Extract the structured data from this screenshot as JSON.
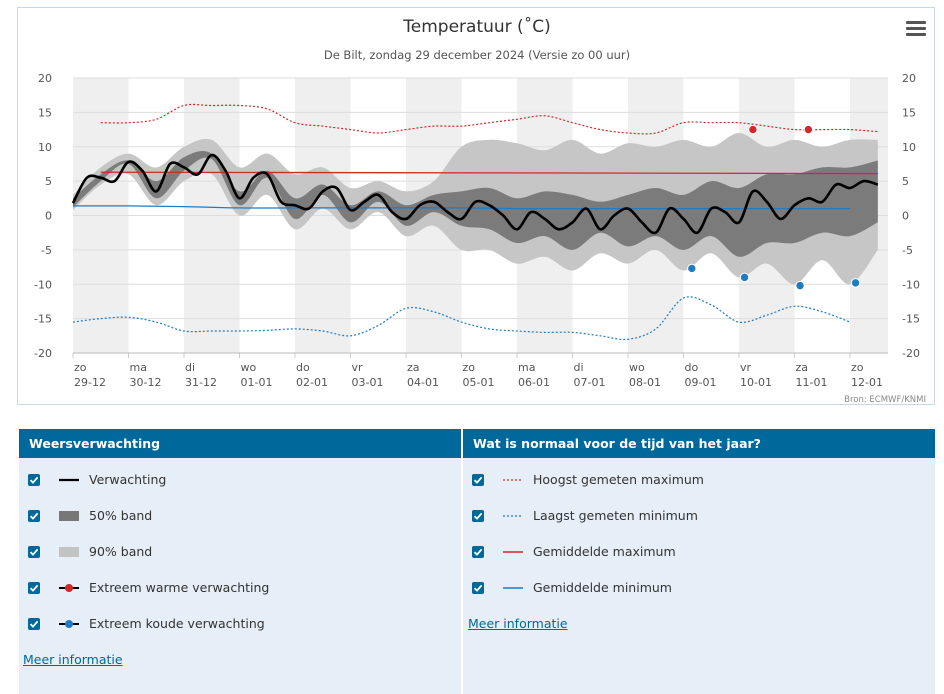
{
  "chart_data": {
    "type": "line",
    "title": "Temperatuur (˚C)",
    "subtitle": "De Bilt, zondag 29 december 2024 (Versie zo 00 uur)",
    "credit": "Bron: ECMWF/KNMI",
    "ylim": [
      -20,
      20
    ],
    "yticks": [
      20,
      15,
      10,
      5,
      0,
      -5,
      -10,
      -15,
      -20
    ],
    "xlim": [
      0,
      14.6
    ],
    "grid": true,
    "x_ticks": [
      {
        "day": "zo",
        "date": "29-12"
      },
      {
        "day": "ma",
        "date": "30-12"
      },
      {
        "day": "di",
        "date": "31-12"
      },
      {
        "day": "wo",
        "date": "01-01"
      },
      {
        "day": "do",
        "date": "02-01"
      },
      {
        "day": "vr",
        "date": "03-01"
      },
      {
        "day": "za",
        "date": "04-01"
      },
      {
        "day": "zo",
        "date": "05-01"
      },
      {
        "day": "ma",
        "date": "06-01"
      },
      {
        "day": "di",
        "date": "07-01"
      },
      {
        "day": "wo",
        "date": "08-01"
      },
      {
        "day": "do",
        "date": "09-01"
      },
      {
        "day": "vr",
        "date": "10-01"
      },
      {
        "day": "za",
        "date": "11-01"
      },
      {
        "day": "zo",
        "date": "12-01"
      }
    ],
    "series": [
      {
        "name": "Verwachting",
        "color": "#000000",
        "x": [
          0,
          0.25,
          0.5,
          0.75,
          1,
          1.25,
          1.5,
          1.75,
          2,
          2.25,
          2.5,
          2.75,
          3,
          3.25,
          3.5,
          3.75,
          4,
          4.25,
          4.5,
          4.75,
          5,
          5.25,
          5.5,
          5.75,
          6,
          6.25,
          6.5,
          6.75,
          7,
          7.25,
          7.5,
          7.75,
          8,
          8.25,
          8.5,
          8.75,
          9,
          9.25,
          9.5,
          9.75,
          10,
          10.25,
          10.5,
          10.75,
          11,
          11.25,
          11.5,
          11.75,
          12,
          12.25,
          12.5,
          12.75,
          13,
          13.25,
          13.5,
          13.75,
          14,
          14.25,
          14.5
        ],
        "y": [
          1.8,
          5.5,
          5.5,
          5,
          7.8,
          6.5,
          3.5,
          7.5,
          7,
          6,
          8.8,
          6.5,
          2.5,
          5.5,
          6,
          2,
          1.5,
          1,
          3.5,
          4,
          0.8,
          2,
          3,
          0.5,
          -0.5,
          1.5,
          2,
          0.5,
          -0.5,
          2,
          1.5,
          0,
          -2,
          0.5,
          -0.5,
          -2,
          -1,
          1,
          -2,
          0,
          1,
          -1,
          -2.5,
          1,
          -0.5,
          -2.5,
          1,
          0.5,
          -1,
          3.5,
          2,
          -0.5,
          1.5,
          2.5,
          2,
          4.5,
          4,
          5,
          4.5
        ]
      },
      {
        "name": "50% band",
        "color": "#777777",
        "x": [
          0,
          0.5,
          1,
          1.5,
          2,
          2.5,
          3,
          3.5,
          4,
          4.5,
          5,
          5.5,
          6,
          6.5,
          7,
          7.5,
          8,
          8.5,
          9,
          9.5,
          10,
          10.5,
          11,
          11.5,
          12,
          12.5,
          13,
          13.5,
          14,
          14.5
        ],
        "upper": [
          2.5,
          6,
          8,
          5,
          8.5,
          9,
          3.5,
          6.5,
          2.5,
          4.5,
          1.5,
          3.5,
          1.5,
          3,
          3.5,
          4,
          2.5,
          3.5,
          3,
          2,
          3,
          4,
          3,
          5,
          4,
          6,
          6,
          7,
          7,
          8
        ],
        "lower": [
          1.2,
          5,
          7.5,
          2.5,
          6.5,
          8.2,
          1.5,
          5.5,
          -0.5,
          3,
          -1,
          2,
          -1.5,
          0.5,
          -1.5,
          -2,
          -4,
          -3,
          -5,
          -2.5,
          -4.5,
          -3,
          -5,
          -3,
          -6,
          -4,
          -4,
          -2.5,
          -3,
          -1
        ]
      },
      {
        "name": "90% band",
        "color": "#c3c3c3",
        "x": [
          0,
          0.5,
          1,
          1.5,
          2,
          2.5,
          3,
          3.5,
          4,
          4.5,
          5,
          5.5,
          6,
          6.5,
          7,
          7.5,
          8,
          8.5,
          9,
          9.5,
          10,
          10.5,
          11,
          11.5,
          12,
          12.5,
          13,
          13.5,
          14,
          14.5
        ],
        "upper": [
          3,
          7,
          9,
          7,
          10,
          11,
          7,
          9,
          6,
          7,
          4,
          5,
          3.5,
          5,
          10,
          11,
          10.5,
          9.5,
          11,
          9,
          10.5,
          10,
          11,
          10,
          12,
          10,
          11,
          10,
          11,
          11
        ],
        "lower": [
          0.8,
          4.5,
          6,
          1.5,
          5,
          6,
          0,
          3,
          -2,
          1,
          -2,
          0.5,
          -3,
          -1.5,
          -5,
          -5,
          -7,
          -6,
          -8,
          -5.5,
          -7,
          -5,
          -8,
          -5.5,
          -9,
          -7,
          -10,
          -6.5,
          -10,
          -5
        ]
      },
      {
        "name": "Extreem warme verwachting",
        "color": "#d62728",
        "x": [
          12.25,
          13.25
        ],
        "y": [
          12.5,
          12.5
        ]
      },
      {
        "name": "Extreem koude verwachting",
        "color": "#1f7bc4",
        "x": [
          11.15,
          12.1,
          13.1,
          14.1
        ],
        "y": [
          -7.7,
          -9,
          -10.2,
          -9.8
        ]
      },
      {
        "name": "Hoogst gemeten maximum",
        "color": "#d62728",
        "x": [
          0.5,
          1,
          1.5,
          2,
          2.5,
          3,
          3.5,
          4,
          4.5,
          5,
          5.5,
          6,
          6.5,
          7,
          7.5,
          8,
          8.5,
          9,
          9.5,
          10,
          10.5,
          11,
          11.5,
          12,
          12.5,
          13,
          13.5,
          14,
          14.5
        ],
        "y": [
          13.5,
          13.5,
          14,
          16,
          16,
          16,
          15.5,
          13.5,
          13,
          12.5,
          12,
          12.5,
          13,
          13,
          13.5,
          14,
          14.5,
          13.5,
          12.5,
          12,
          12,
          13.5,
          13.5,
          13.5,
          13,
          12.5,
          12.5,
          12.5,
          12.2
        ]
      },
      {
        "name": "Laagst gemeten minimum",
        "color": "#1f7bc4",
        "x": [
          0,
          0.5,
          1,
          1.5,
          2,
          2.5,
          3,
          3.5,
          4,
          4.5,
          5,
          5.5,
          6,
          6.5,
          7,
          7.5,
          8,
          8.5,
          9,
          9.5,
          10,
          10.5,
          11,
          11.5,
          12,
          12.5,
          13,
          13.5,
          14
        ],
        "y": [
          -15.5,
          -15,
          -14.8,
          -15.5,
          -16.8,
          -16.8,
          -16.8,
          -16.7,
          -16.5,
          -16.8,
          -17.5,
          -16,
          -13.5,
          -14,
          -15.5,
          -16.5,
          -16.8,
          -17,
          -17,
          -17.5,
          -18,
          -16.5,
          -12,
          -13,
          -15.5,
          -14.5,
          -13.2,
          -14,
          -15.5
        ]
      },
      {
        "name": "Gemiddelde maximum",
        "color": "#d62728",
        "x": [
          0.5,
          14.5
        ],
        "y": [
          6.3,
          6.1
        ]
      },
      {
        "name": "Gemiddelde minimum",
        "color": "#1f7bc4",
        "x": [
          0,
          1,
          2,
          3,
          4,
          5,
          6,
          7,
          8,
          9,
          10,
          11,
          12,
          13,
          14
        ],
        "y": [
          1.4,
          1.4,
          1.3,
          1.1,
          1.1,
          1.1,
          1.1,
          1.1,
          1.0,
          1.0,
          1.0,
          1.0,
          1.0,
          1.0,
          1.0
        ]
      }
    ]
  },
  "legend_left": {
    "header": "Weersverwachting",
    "items": [
      {
        "label": "Verwachting"
      },
      {
        "label": "50% band"
      },
      {
        "label": "90% band"
      },
      {
        "label": "Extreem warme verwachting"
      },
      {
        "label": "Extreem koude verwachting"
      }
    ],
    "more_link": "Meer informatie"
  },
  "legend_right": {
    "header": "Wat is normaal voor de tijd van het jaar?",
    "items": [
      {
        "label": "Hoogst gemeten maximum"
      },
      {
        "label": "Laagst gemeten minimum"
      },
      {
        "label": "Gemiddelde maximum"
      },
      {
        "label": "Gemiddelde minimum"
      }
    ],
    "more_link": "Meer informatie"
  }
}
